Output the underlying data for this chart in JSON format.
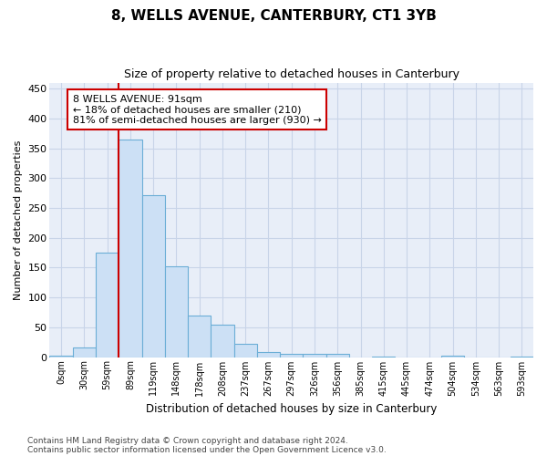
{
  "title1": "8, WELLS AVENUE, CANTERBURY, CT1 3YB",
  "title2": "Size of property relative to detached houses in Canterbury",
  "xlabel": "Distribution of detached houses by size in Canterbury",
  "ylabel": "Number of detached properties",
  "bar_labels": [
    "0sqm",
    "30sqm",
    "59sqm",
    "89sqm",
    "119sqm",
    "148sqm",
    "178sqm",
    "208sqm",
    "237sqm",
    "267sqm",
    "297sqm",
    "326sqm",
    "356sqm",
    "385sqm",
    "415sqm",
    "445sqm",
    "474sqm",
    "504sqm",
    "534sqm",
    "563sqm",
    "593sqm"
  ],
  "bar_values": [
    2,
    16,
    175,
    365,
    272,
    152,
    70,
    54,
    22,
    9,
    5,
    5,
    6,
    0,
    1,
    0,
    0,
    2,
    0,
    0,
    1
  ],
  "bar_color": "#cce0f5",
  "bar_edgecolor": "#6baed6",
  "vline_index": 3,
  "vline_color": "#cc0000",
  "annotation_text": "8 WELLS AVENUE: 91sqm\n← 18% of detached houses are smaller (210)\n81% of semi-detached houses are larger (930) →",
  "annotation_box_color": "#ffffff",
  "annotation_box_edgecolor": "#cc0000",
  "footer1": "Contains HM Land Registry data © Crown copyright and database right 2024.",
  "footer2": "Contains public sector information licensed under the Open Government Licence v3.0.",
  "bg_color": "#ffffff",
  "plot_bg_color": "#e8eef8",
  "grid_color": "#c8d4e8",
  "ylim": [
    0,
    460
  ],
  "yticks": [
    0,
    50,
    100,
    150,
    200,
    250,
    300,
    350,
    400,
    450
  ]
}
